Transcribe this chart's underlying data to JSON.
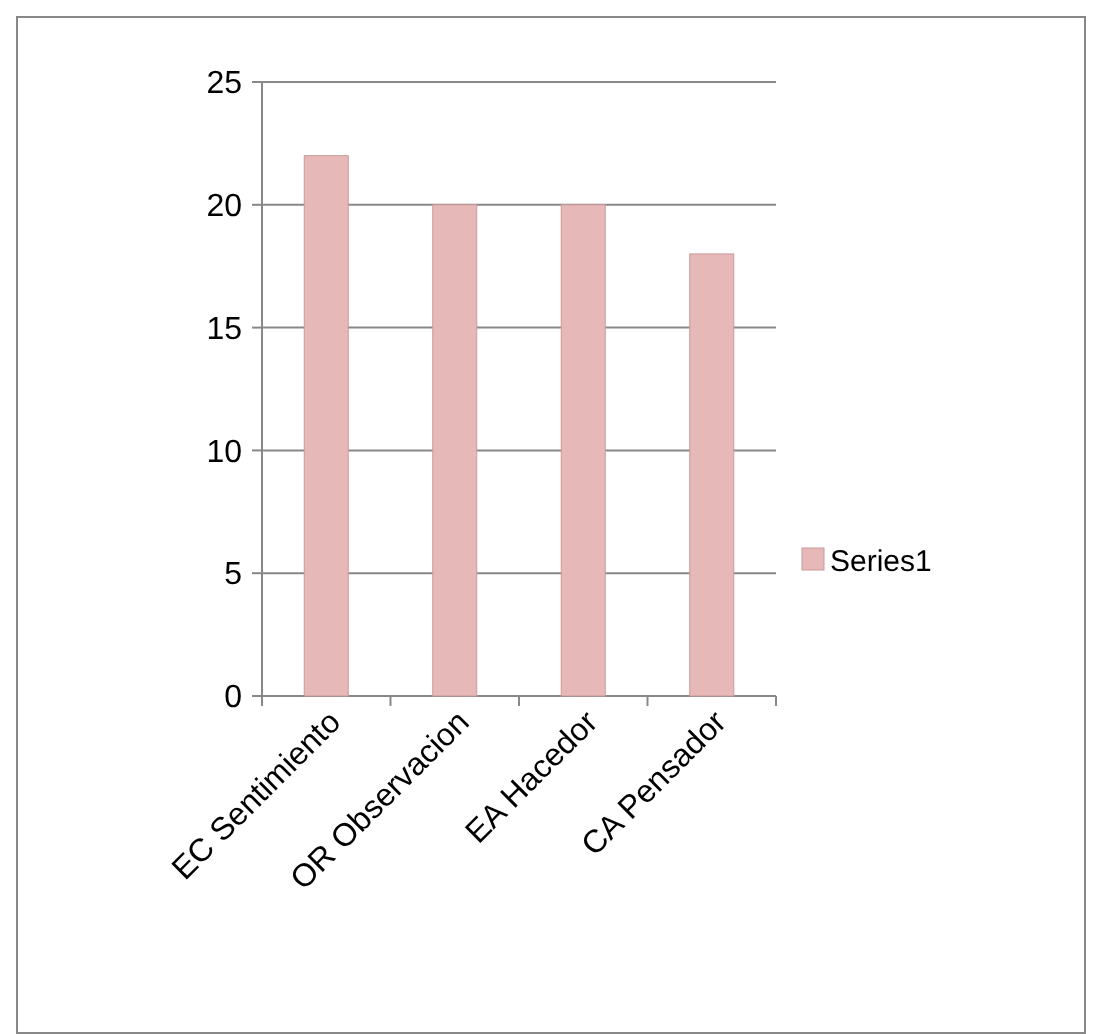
{
  "chart_data": {
    "type": "bar",
    "categories": [
      "EC Sentimiento",
      "OR Observacion",
      "EA Hacedor",
      "CA Pensador"
    ],
    "series": [
      {
        "name": "Series1",
        "color": "#e6b9b8",
        "values": [
          22,
          20,
          20,
          18
        ]
      }
    ],
    "ylim": [
      0,
      25
    ],
    "yticks": [
      0,
      5,
      10,
      15,
      20,
      25
    ],
    "grid": "y",
    "legend": "right"
  }
}
